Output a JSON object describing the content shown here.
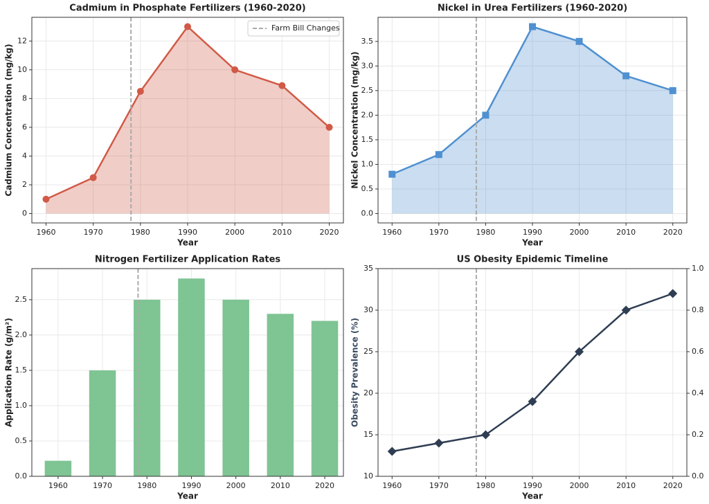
{
  "chart_data": [
    {
      "type": "line",
      "title": "Cadmium in Phosphate Fertilizers (1960-2020)",
      "xlabel": "Year",
      "ylabel": "Cadmium Concentration (mg/kg)",
      "x": [
        1960,
        1970,
        1980,
        1990,
        2000,
        2010,
        2020
      ],
      "values": [
        1,
        2.5,
        8.5,
        13,
        10,
        8.9,
        6
      ],
      "color": "#d05a47",
      "marker": "circle",
      "fill": true,
      "xlim": [
        1957,
        2023
      ],
      "xticks": [
        1960,
        1970,
        1980,
        1990,
        2000,
        2010,
        2020
      ],
      "ylim": [
        -0.65,
        13.65
      ],
      "yticks": [
        0,
        2,
        4,
        6,
        8,
        10,
        12
      ],
      "grid": true,
      "vlines": [
        {
          "x": 1978,
          "name": "Farm Bill Changes"
        }
      ],
      "legend": "upper right"
    },
    {
      "type": "line",
      "title": "Nickel in Urea Fertilizers (1960-2020)",
      "xlabel": "Year",
      "ylabel": "Nickel Concentration (mg/kg)",
      "x": [
        1960,
        1970,
        1980,
        1990,
        2000,
        2010,
        2020
      ],
      "values": [
        0.8,
        1.2,
        2.0,
        3.8,
        3.5,
        2.8,
        2.5
      ],
      "color": "#4f90d0",
      "marker": "square",
      "fill": true,
      "xlim": [
        1957,
        2023
      ],
      "xticks": [
        1960,
        1970,
        1980,
        1990,
        2000,
        2010,
        2020
      ],
      "ylim": [
        -0.19,
        3.99
      ],
      "yticks": [
        {
          "value": 0,
          "label": "0.0"
        },
        0.5,
        {
          "value": 1,
          "label": "1.0"
        },
        1.5,
        {
          "value": 2,
          "label": "2.0"
        },
        2.5,
        {
          "value": 3,
          "label": "3.0"
        },
        3.5
      ],
      "grid": true,
      "vlines": [
        {
          "x": 1978
        }
      ]
    },
    {
      "type": "bar",
      "title": "Nitrogen Fertilizer Application Rates",
      "xlabel": "Year",
      "ylabel": "Application Rate (g/m²)",
      "x": [
        1960,
        1970,
        1980,
        1990,
        2000,
        2010,
        2020
      ],
      "values": [
        0.22,
        1.5,
        2.5,
        2.8,
        2.5,
        2.3,
        2.2
      ],
      "color": "#7fc493",
      "xlim": [
        1954.1,
        2024.2
      ],
      "xticks": [
        1960,
        1970,
        1980,
        1990,
        2000,
        2010,
        2020
      ],
      "ylim": [
        0,
        2.94
      ],
      "yticks": [
        {
          "value": 0,
          "label": "0.0"
        },
        0.5,
        {
          "value": 1,
          "label": "1.0"
        },
        1.5,
        {
          "value": 2,
          "label": "2.0"
        },
        2.5
      ],
      "grid": true,
      "vlines": [
        {
          "x": 1978
        }
      ]
    },
    {
      "type": "line",
      "title": "US Obesity Epidemic Timeline",
      "xlabel": "Year",
      "ylabel": "Obesity Prevalence (%)",
      "ylabel_color": "#3a4a60",
      "x": [
        1960,
        1970,
        1980,
        1990,
        2000,
        2010,
        2020
      ],
      "values": [
        13,
        14,
        15,
        19,
        25,
        30,
        32
      ],
      "color": "#2e3d52",
      "marker": "diamond",
      "fill": false,
      "xlim": [
        1957,
        2023
      ],
      "xticks": [
        1960,
        1970,
        1980,
        1990,
        2000,
        2010,
        2020
      ],
      "ylim": [
        10,
        35
      ],
      "yticks": [
        10,
        15,
        20,
        25,
        30,
        35
      ],
      "y2lim": [
        0,
        1
      ],
      "y2ticks": [
        {
          "value": 0,
          "label": "0.0"
        },
        0.2,
        0.4,
        0.6,
        0.8,
        {
          "value": 1,
          "label": "1.0"
        }
      ],
      "grid": true,
      "vlines": [
        {
          "x": 1978
        }
      ]
    }
  ]
}
